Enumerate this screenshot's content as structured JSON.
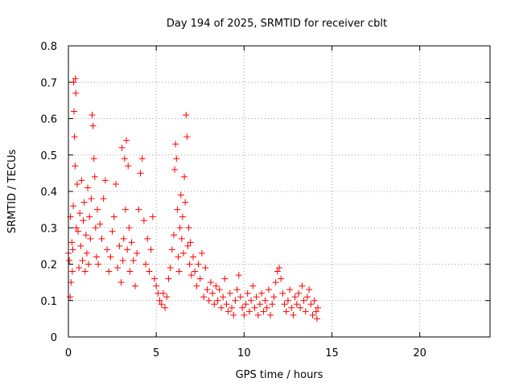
{
  "chart_data": {
    "type": "scatter",
    "title": "Day 194 of 2025, SRMTID for receiver cblt",
    "xlabel": "GPS time / hours",
    "ylabel": "SRMTID / TECUs",
    "xlim": [
      0,
      24
    ],
    "ylim": [
      0,
      0.8
    ],
    "xticks": [
      0,
      5,
      10,
      15,
      20
    ],
    "yticks": [
      0,
      0.1,
      0.2,
      0.3,
      0.4,
      0.5,
      0.6,
      0.7,
      0.8
    ],
    "xtick_labels": [
      "0",
      "5",
      "10",
      "15",
      "20"
    ],
    "ytick_labels": [
      "0",
      "0.1",
      "0.2",
      "0.3",
      "0.4",
      "0.5",
      "0.6",
      "0.7",
      "0.8"
    ],
    "grid": true,
    "marker": "+",
    "marker_color": "#ff0000",
    "series": [
      {
        "name": "SRMTID",
        "points": [
          [
            0.0,
            0.23
          ],
          [
            0.05,
            0.21
          ],
          [
            0.1,
            0.11
          ],
          [
            0.12,
            0.33
          ],
          [
            0.15,
            0.15
          ],
          [
            0.2,
            0.26
          ],
          [
            0.22,
            0.18
          ],
          [
            0.25,
            0.24
          ],
          [
            0.28,
            0.36
          ],
          [
            0.3,
            0.7
          ],
          [
            0.32,
            0.62
          ],
          [
            0.35,
            0.55
          ],
          [
            0.38,
            0.47
          ],
          [
            0.4,
            0.71
          ],
          [
            0.42,
            0.67
          ],
          [
            0.45,
            0.3
          ],
          [
            0.5,
            0.42
          ],
          [
            0.55,
            0.29
          ],
          [
            0.6,
            0.19
          ],
          [
            0.65,
            0.34
          ],
          [
            0.7,
            0.25
          ],
          [
            0.75,
            0.43
          ],
          [
            0.8,
            0.21
          ],
          [
            0.85,
            0.32
          ],
          [
            0.9,
            0.37
          ],
          [
            0.95,
            0.18
          ],
          [
            1.0,
            0.28
          ],
          [
            1.05,
            0.23
          ],
          [
            1.1,
            0.41
          ],
          [
            1.15,
            0.2
          ],
          [
            1.2,
            0.33
          ],
          [
            1.25,
            0.27
          ],
          [
            1.3,
            0.38
          ],
          [
            1.35,
            0.61
          ],
          [
            1.4,
            0.58
          ],
          [
            1.45,
            0.49
          ],
          [
            1.5,
            0.44
          ],
          [
            1.55,
            0.3
          ],
          [
            1.6,
            0.22
          ],
          [
            1.65,
            0.35
          ],
          [
            1.7,
            0.2
          ],
          [
            1.8,
            0.31
          ],
          [
            1.9,
            0.27
          ],
          [
            2.0,
            0.38
          ],
          [
            2.1,
            0.43
          ],
          [
            2.2,
            0.24
          ],
          [
            2.3,
            0.18
          ],
          [
            2.4,
            0.22
          ],
          [
            2.5,
            0.29
          ],
          [
            2.6,
            0.33
          ],
          [
            2.7,
            0.42
          ],
          [
            2.8,
            0.19
          ],
          [
            2.9,
            0.25
          ],
          [
            3.0,
            0.15
          ],
          [
            3.05,
            0.52
          ],
          [
            3.1,
            0.21
          ],
          [
            3.15,
            0.27
          ],
          [
            3.2,
            0.49
          ],
          [
            3.25,
            0.35
          ],
          [
            3.3,
            0.54
          ],
          [
            3.35,
            0.24
          ],
          [
            3.4,
            0.47
          ],
          [
            3.45,
            0.3
          ],
          [
            3.5,
            0.18
          ],
          [
            3.6,
            0.26
          ],
          [
            3.7,
            0.21
          ],
          [
            3.8,
            0.14
          ],
          [
            3.9,
            0.23
          ],
          [
            4.0,
            0.35
          ],
          [
            4.1,
            0.45
          ],
          [
            4.2,
            0.49
          ],
          [
            4.3,
            0.32
          ],
          [
            4.4,
            0.2
          ],
          [
            4.5,
            0.27
          ],
          [
            4.6,
            0.18
          ],
          [
            4.7,
            0.24
          ],
          [
            4.8,
            0.33
          ],
          [
            4.9,
            0.16
          ],
          [
            5.0,
            0.14
          ],
          [
            5.1,
            0.12
          ],
          [
            5.2,
            0.1
          ],
          [
            5.3,
            0.09
          ],
          [
            5.4,
            0.12
          ],
          [
            5.5,
            0.08
          ],
          [
            5.6,
            0.11
          ],
          [
            5.7,
            0.16
          ],
          [
            5.8,
            0.19
          ],
          [
            5.9,
            0.24
          ],
          [
            6.0,
            0.28
          ],
          [
            6.05,
            0.46
          ],
          [
            6.1,
            0.53
          ],
          [
            6.15,
            0.49
          ],
          [
            6.2,
            0.35
          ],
          [
            6.25,
            0.22
          ],
          [
            6.3,
            0.18
          ],
          [
            6.35,
            0.3
          ],
          [
            6.4,
            0.39
          ],
          [
            6.45,
            0.27
          ],
          [
            6.5,
            0.33
          ],
          [
            6.55,
            0.23
          ],
          [
            6.6,
            0.44
          ],
          [
            6.65,
            0.37
          ],
          [
            6.7,
            0.61
          ],
          [
            6.75,
            0.55
          ],
          [
            6.8,
            0.25
          ],
          [
            6.85,
            0.3
          ],
          [
            6.9,
            0.2
          ],
          [
            6.95,
            0.26
          ],
          [
            7.0,
            0.17
          ],
          [
            7.1,
            0.22
          ],
          [
            7.2,
            0.18
          ],
          [
            7.3,
            0.14
          ],
          [
            7.4,
            0.2
          ],
          [
            7.5,
            0.16
          ],
          [
            7.6,
            0.23
          ],
          [
            7.7,
            0.11
          ],
          [
            7.8,
            0.19
          ],
          [
            7.9,
            0.13
          ],
          [
            8.0,
            0.1
          ],
          [
            8.1,
            0.15
          ],
          [
            8.2,
            0.12
          ],
          [
            8.3,
            0.09
          ],
          [
            8.4,
            0.14
          ],
          [
            8.5,
            0.1
          ],
          [
            8.6,
            0.13
          ],
          [
            8.7,
            0.08
          ],
          [
            8.8,
            0.11
          ],
          [
            8.9,
            0.16
          ],
          [
            9.0,
            0.09
          ],
          [
            9.1,
            0.07
          ],
          [
            9.2,
            0.12
          ],
          [
            9.3,
            0.08
          ],
          [
            9.4,
            0.06
          ],
          [
            9.5,
            0.1
          ],
          [
            9.6,
            0.13
          ],
          [
            9.7,
            0.17
          ],
          [
            9.8,
            0.11
          ],
          [
            9.9,
            0.08
          ],
          [
            10.0,
            0.06
          ],
          [
            10.1,
            0.09
          ],
          [
            10.2,
            0.12
          ],
          [
            10.3,
            0.07
          ],
          [
            10.4,
            0.1
          ],
          [
            10.5,
            0.14
          ],
          [
            10.6,
            0.08
          ],
          [
            10.7,
            0.11
          ],
          [
            10.8,
            0.06
          ],
          [
            10.9,
            0.09
          ],
          [
            11.0,
            0.12
          ],
          [
            11.1,
            0.07
          ],
          [
            11.2,
            0.1
          ],
          [
            11.3,
            0.08
          ],
          [
            11.4,
            0.13
          ],
          [
            11.5,
            0.06
          ],
          [
            11.6,
            0.09
          ],
          [
            11.7,
            0.11
          ],
          [
            11.8,
            0.15
          ],
          [
            11.9,
            0.18
          ],
          [
            12.0,
            0.19
          ],
          [
            12.1,
            0.16
          ],
          [
            12.2,
            0.12
          ],
          [
            12.3,
            0.09
          ],
          [
            12.4,
            0.07
          ],
          [
            12.5,
            0.1
          ],
          [
            12.6,
            0.13
          ],
          [
            12.7,
            0.08
          ],
          [
            12.8,
            0.06
          ],
          [
            12.9,
            0.11
          ],
          [
            13.0,
            0.09
          ],
          [
            13.1,
            0.12
          ],
          [
            13.2,
            0.08
          ],
          [
            13.3,
            0.14
          ],
          [
            13.4,
            0.1
          ],
          [
            13.5,
            0.07
          ],
          [
            13.6,
            0.11
          ],
          [
            13.7,
            0.13
          ],
          [
            13.8,
            0.09
          ],
          [
            13.9,
            0.06
          ],
          [
            14.0,
            0.1
          ],
          [
            14.1,
            0.07
          ],
          [
            14.15,
            0.05
          ],
          [
            14.2,
            0.08
          ]
        ]
      }
    ]
  }
}
